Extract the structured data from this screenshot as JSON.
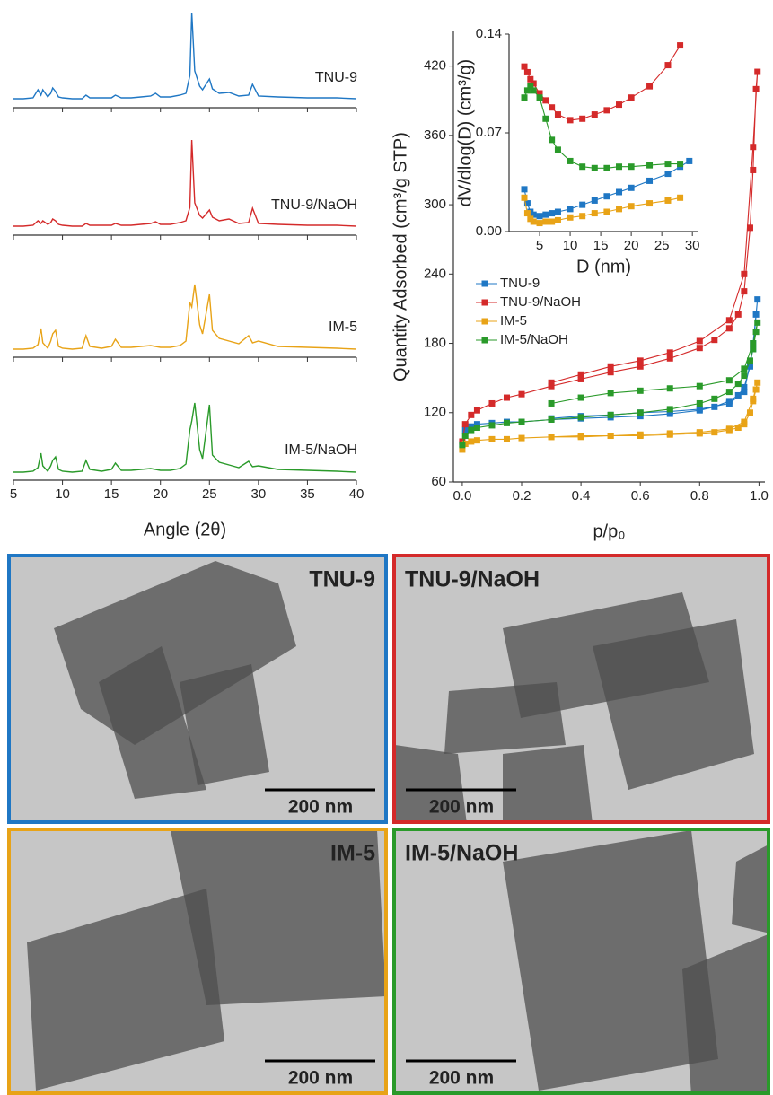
{
  "chart_data": [
    {
      "type": "line",
      "xlabel": "Angle (2θ)",
      "xlim": [
        5,
        40
      ],
      "xticks": [
        5,
        10,
        15,
        20,
        25,
        30,
        35,
        40
      ],
      "x": [
        5,
        6,
        7,
        7.5,
        7.8,
        8,
        8.5,
        8.8,
        9,
        9.3,
        9.6,
        10,
        11,
        12,
        12.4,
        12.8,
        14,
        15,
        15.4,
        16,
        17,
        18,
        19,
        19.5,
        20,
        21,
        22,
        22.6,
        23,
        23.2,
        23.5,
        24,
        24.3,
        25,
        25.3,
        26,
        27,
        28,
        29,
        29.4,
        30,
        32,
        35,
        38,
        40
      ],
      "series": [
        {
          "name": "TNU-9",
          "color": "#1f77c4",
          "values": [
            4,
            4,
            5,
            14,
            8,
            14,
            6,
            10,
            16,
            12,
            6,
            5,
            4,
            4,
            8,
            5,
            5,
            5,
            8,
            5,
            5,
            6,
            7,
            10,
            6,
            6,
            8,
            10,
            30,
            100,
            35,
            18,
            14,
            26,
            15,
            10,
            11,
            7,
            8,
            20,
            7,
            6,
            5,
            5,
            4
          ]
        },
        {
          "name": "TNU-9/NaOH",
          "color": "#d42a2a",
          "values": [
            4,
            4,
            5,
            10,
            7,
            10,
            6,
            8,
            12,
            10,
            6,
            5,
            4,
            4,
            7,
            5,
            5,
            5,
            7,
            5,
            5,
            6,
            7,
            9,
            6,
            6,
            8,
            10,
            25,
            100,
            30,
            16,
            13,
            22,
            14,
            10,
            12,
            7,
            8,
            24,
            7,
            6,
            5,
            5,
            4
          ]
        },
        {
          "name": "IM-5",
          "color": "#e8a317",
          "values": [
            3,
            3,
            4,
            8,
            26,
            10,
            4,
            12,
            20,
            24,
            6,
            4,
            3,
            4,
            18,
            6,
            4,
            6,
            14,
            5,
            5,
            6,
            7,
            6,
            5,
            5,
            7,
            12,
            55,
            50,
            75,
            30,
            20,
            64,
            24,
            15,
            12,
            9,
            18,
            10,
            12,
            6,
            5,
            4,
            3
          ]
        },
        {
          "name": "IM-5/NaOH",
          "color": "#2a9a2a",
          "values": [
            3,
            3,
            4,
            8,
            24,
            10,
            4,
            10,
            16,
            20,
            6,
            4,
            3,
            4,
            16,
            6,
            4,
            6,
            13,
            5,
            5,
            6,
            7,
            6,
            5,
            5,
            7,
            12,
            50,
            60,
            80,
            28,
            18,
            78,
            22,
            14,
            11,
            8,
            15,
            9,
            10,
            6,
            5,
            4,
            3
          ]
        }
      ]
    },
    {
      "type": "line",
      "xlabel": "p/p₀",
      "ylabel": "Quantity Adsorbed (cm³/g STP)",
      "markers": "square",
      "legend": "center left",
      "xlim": [
        -0.03,
        1.02
      ],
      "xticks": [
        {
          "value": 0,
          "label": "0.0"
        },
        {
          "value": 0.2,
          "label": "0.2"
        },
        {
          "value": 0.4,
          "label": "0.4"
        },
        {
          "value": 0.6,
          "label": "0.6"
        },
        {
          "value": 0.8,
          "label": "0.8"
        },
        {
          "value": 1,
          "label": "1.0"
        }
      ],
      "ylim": [
        60,
        450
      ],
      "yticks": [
        60,
        120,
        180,
        240,
        300,
        360,
        420
      ],
      "x": [
        0,
        0.01,
        0.03,
        0.05,
        0.1,
        0.15,
        0.2,
        0.3,
        0.4,
        0.5,
        0.6,
        0.7,
        0.8,
        0.85,
        0.9,
        0.93,
        0.95,
        0.97,
        0.98,
        0.99,
        0.995,
        0.98,
        0.95,
        0.9,
        0.8,
        0.7,
        0.6,
        0.5,
        0.4,
        0.3
      ],
      "series": [
        {
          "name": "TNU-9",
          "color": "#1f77c4",
          "values": [
            93,
            105,
            108,
            110,
            111,
            112,
            112,
            114,
            115,
            116,
            117,
            119,
            122,
            125,
            130,
            135,
            142,
            160,
            180,
            205,
            218,
            175,
            138,
            128,
            123,
            121,
            120,
            118,
            117,
            115
          ]
        },
        {
          "name": "TNU-9/NaOH",
          "color": "#d42a2a",
          "values": [
            95,
            110,
            118,
            122,
            128,
            133,
            136,
            143,
            149,
            155,
            160,
            167,
            176,
            183,
            193,
            205,
            225,
            280,
            330,
            400,
            415,
            350,
            240,
            200,
            182,
            172,
            165,
            160,
            153,
            146
          ]
        },
        {
          "name": "IM-5",
          "color": "#e8a317",
          "values": [
            88,
            93,
            95,
            96,
            97,
            97,
            98,
            99,
            99,
            100,
            100,
            101,
            102,
            103,
            105,
            107,
            110,
            120,
            130,
            140,
            146,
            132,
            112,
            106,
            103,
            102,
            101,
            100,
            100,
            99
          ]
        },
        {
          "name": "IM-5/NaOH",
          "color": "#2a9a2a",
          "values": [
            92,
            100,
            105,
            107,
            109,
            111,
            112,
            114,
            116,
            118,
            120,
            123,
            128,
            132,
            138,
            145,
            152,
            165,
            175,
            190,
            198,
            180,
            158,
            148,
            143,
            141,
            139,
            137,
            133,
            128
          ]
        }
      ]
    },
    {
      "type": "line",
      "xlabel": "D (nm)",
      "ylabel": "dV/dlog(D) (cm³/g)",
      "markers": "square",
      "xlim": [
        0,
        31
      ],
      "xticks": [
        5,
        10,
        15,
        20,
        25,
        30
      ],
      "ylim": [
        0,
        0.14
      ],
      "yticks": [
        {
          "value": 0,
          "label": "0.00"
        },
        {
          "value": 0.07,
          "label": "0.07"
        },
        {
          "value": 0.14,
          "label": "0.14"
        }
      ],
      "x": [
        2.5,
        3,
        3.5,
        4,
        5,
        6,
        7,
        8,
        10,
        12,
        14,
        16,
        18,
        20,
        23,
        26,
        28,
        29.5
      ],
      "series": [
        {
          "color": "#d42a2a",
          "values": [
            0.117,
            0.113,
            0.108,
            0.105,
            0.098,
            0.093,
            0.088,
            0.083,
            0.079,
            0.08,
            0.083,
            0.086,
            0.09,
            0.095,
            0.103,
            0.118,
            0.132,
            null
          ]
        },
        {
          "color": "#1f77c4",
          "values": [
            0.03,
            0.02,
            0.014,
            0.012,
            0.011,
            0.012,
            0.013,
            0.014,
            0.016,
            0.019,
            0.022,
            0.025,
            0.028,
            0.031,
            0.036,
            0.041,
            0.046,
            0.05
          ]
        },
        {
          "color": "#e8a317",
          "values": [
            0.024,
            0.013,
            0.009,
            0.007,
            0.006,
            0.007,
            0.007,
            0.008,
            0.01,
            0.011,
            0.013,
            0.014,
            0.016,
            0.018,
            0.02,
            0.022,
            0.024,
            null
          ]
        },
        {
          "color": "#2a9a2a",
          "values": [
            0.095,
            0.1,
            0.103,
            0.1,
            0.095,
            0.08,
            0.065,
            0.058,
            0.05,
            0.046,
            0.045,
            0.045,
            0.046,
            0.046,
            0.047,
            0.048,
            0.048,
            null
          ]
        }
      ]
    }
  ],
  "micrographs": [
    {
      "label": "TNU-9",
      "color": "#1f77c4",
      "scale_bar": "200 nm"
    },
    {
      "label": "TNU-9/NaOH",
      "color": "#d42a2a",
      "scale_bar": "200 nm"
    },
    {
      "label": "IM-5",
      "color": "#e8a317",
      "scale_bar": "200 nm"
    },
    {
      "label": "IM-5/NaOH",
      "color": "#2a9a2a",
      "scale_bar": "200 nm"
    }
  ]
}
